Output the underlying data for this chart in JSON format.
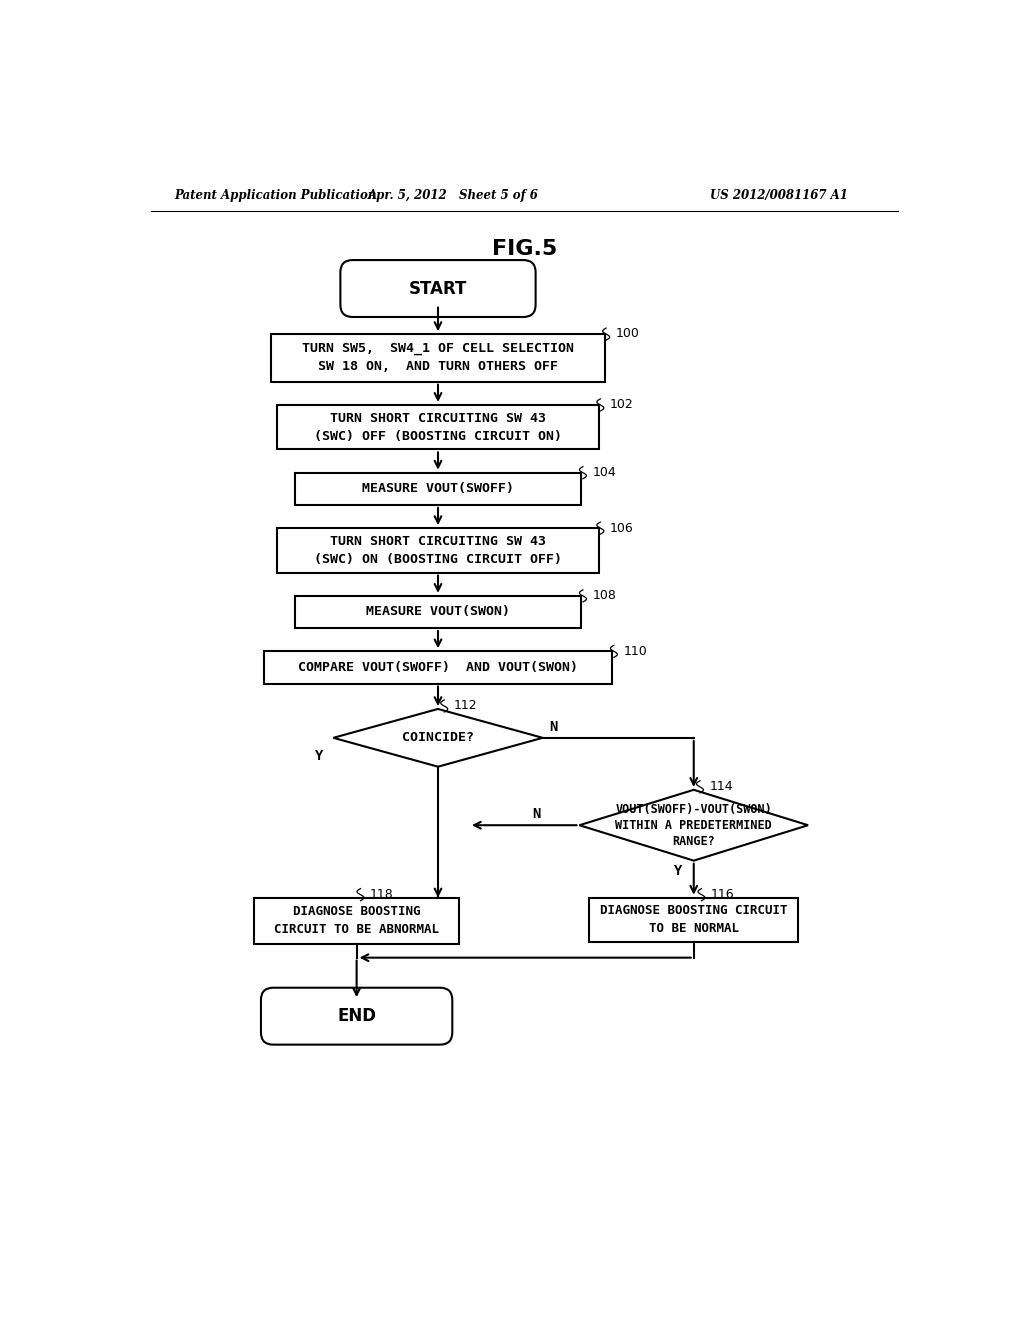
{
  "bg_color": "#ffffff",
  "line_color": "#000000",
  "text_color": "#000000",
  "header_left": "Patent Application Publication",
  "header_mid": "Apr. 5, 2012   Sheet 5 of 6",
  "header_right": "US 2012/0081167 A1",
  "fig_title": "FIG.5",
  "lw": 1.5
}
